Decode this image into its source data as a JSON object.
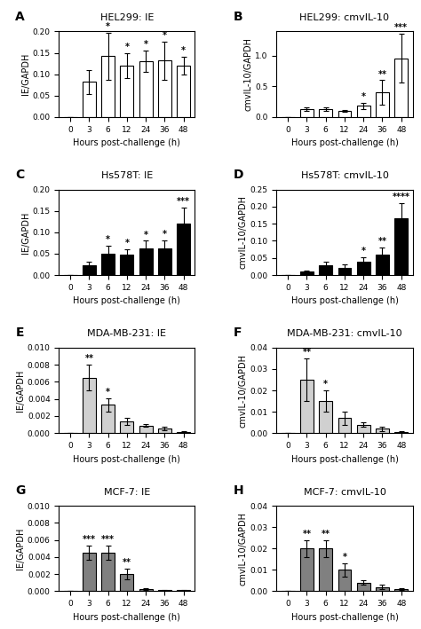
{
  "chart_data": [
    {
      "type": "bar",
      "panel_label": "A",
      "title": "HEL299: IE",
      "xlabel": "Hours post-challenge (h)",
      "ylabel": "IE/GAPDH",
      "categories": [
        "0",
        "3",
        "6",
        "12",
        "24",
        "36",
        "48"
      ],
      "values": [
        0.0,
        0.082,
        0.142,
        0.12,
        0.13,
        0.132,
        0.12
      ],
      "errors": [
        0.0,
        0.028,
        0.055,
        0.03,
        0.025,
        0.045,
        0.02
      ],
      "color": "white",
      "ylim": [
        0,
        0.2
      ],
      "yticks": [
        {
          "value": 0.0,
          "label": "0.00"
        },
        0.05,
        {
          "value": 0.1,
          "label": "0.10"
        },
        0.15,
        {
          "value": 0.2,
          "label": "0.20"
        }
      ],
      "annotations": [
        {
          "category": "6",
          "text": "*"
        },
        {
          "category": "12",
          "text": "*"
        },
        {
          "category": "24",
          "text": "*"
        },
        {
          "category": "36",
          "text": "*"
        },
        {
          "category": "48",
          "text": "*"
        }
      ]
    },
    {
      "type": "bar",
      "panel_label": "B",
      "title": "HEL299: cmvIL-10",
      "xlabel": "Hours post-challenge (h)",
      "ylabel": "cmvIL-10/GAPDH",
      "categories": [
        "0",
        "3",
        "6",
        "12",
        "24",
        "36",
        "48"
      ],
      "values": [
        0.0,
        0.13,
        0.13,
        0.1,
        0.18,
        0.4,
        0.96
      ],
      "errors": [
        0.0,
        0.03,
        0.03,
        0.02,
        0.05,
        0.2,
        0.4
      ],
      "color": "white",
      "ylim": [
        0,
        1.4
      ],
      "yticks": [
        0.0,
        0.5,
        1.0
      ],
      "annotations": [
        {
          "category": "24",
          "text": "*"
        },
        {
          "category": "36",
          "text": "**"
        },
        {
          "category": "48",
          "text": "***"
        }
      ]
    },
    {
      "type": "bar",
      "panel_label": "C",
      "title": "Hs578T: IE",
      "xlabel": "Hours post-challenge (h)",
      "ylabel": "IE/GAPDH",
      "categories": [
        "0",
        "3",
        "6",
        "12",
        "24",
        "36",
        "48"
      ],
      "values": [
        0.0,
        0.023,
        0.05,
        0.048,
        0.062,
        0.062,
        0.12
      ],
      "errors": [
        0.0,
        0.008,
        0.018,
        0.012,
        0.018,
        0.02,
        0.038
      ],
      "color": "black",
      "ylim": [
        0,
        0.2
      ],
      "yticks": [
        {
          "value": 0.0,
          "label": "0.00"
        },
        0.05,
        {
          "value": 0.1,
          "label": "0.10"
        },
        0.15,
        {
          "value": 0.2,
          "label": "0.20"
        }
      ],
      "annotations": [
        {
          "category": "6",
          "text": "*"
        },
        {
          "category": "12",
          "text": "*"
        },
        {
          "category": "24",
          "text": "*"
        },
        {
          "category": "36",
          "text": "*"
        },
        {
          "category": "48",
          "text": "***"
        }
      ]
    },
    {
      "type": "bar",
      "panel_label": "D",
      "title": "Hs578T: cmvIL-10",
      "xlabel": "Hours post-challenge (h)",
      "ylabel": "cmvIL-10/GAPDH",
      "categories": [
        "0",
        "3",
        "6",
        "12",
        "24",
        "36",
        "48"
      ],
      "values": [
        0.0,
        0.01,
        0.028,
        0.022,
        0.04,
        0.06,
        0.165
      ],
      "errors": [
        0.0,
        0.003,
        0.01,
        0.008,
        0.012,
        0.02,
        0.045
      ],
      "color": "black",
      "ylim": [
        0,
        0.25
      ],
      "yticks": [
        {
          "value": 0.0,
          "label": "0.00"
        },
        0.05,
        {
          "value": 0.1,
          "label": "0.10"
        },
        0.15,
        {
          "value": 0.2,
          "label": "0.20"
        },
        0.25
      ],
      "annotations": [
        {
          "category": "24",
          "text": "*"
        },
        {
          "category": "36",
          "text": "**"
        },
        {
          "category": "48",
          "text": "****"
        }
      ]
    },
    {
      "type": "bar",
      "panel_label": "E",
      "title": "MDA-MB-231: IE",
      "xlabel": "Hours post-challenge (h)",
      "ylabel": "IE/GAPDH",
      "categories": [
        "0",
        "3",
        "6",
        "12",
        "24",
        "36",
        "48"
      ],
      "values": [
        0.0,
        0.0065,
        0.0033,
        0.0014,
        0.0009,
        0.0005,
        0.0001
      ],
      "errors": [
        0.0,
        0.0015,
        0.0008,
        0.0004,
        0.0002,
        0.0002,
        0.0001
      ],
      "color": "#d0d0d0",
      "ylim": [
        0,
        0.01
      ],
      "yticks": [
        {
          "value": 0.0,
          "label": "0.000"
        },
        0.002,
        0.004,
        0.006,
        0.008,
        {
          "value": 0.01,
          "label": "0.010"
        }
      ],
      "annotations": [
        {
          "category": "3",
          "text": "**"
        },
        {
          "category": "6",
          "text": "*"
        }
      ]
    },
    {
      "type": "bar",
      "panel_label": "F",
      "title": "MDA-MB-231: cmvIL-10",
      "xlabel": "Hours post-challenge (h)",
      "ylabel": "cmvIL-10/GAPDH",
      "categories": [
        "0",
        "3",
        "6",
        "12",
        "24",
        "36",
        "48"
      ],
      "values": [
        0.0,
        0.025,
        0.015,
        0.007,
        0.004,
        0.002,
        0.0005
      ],
      "errors": [
        0.0,
        0.01,
        0.005,
        0.003,
        0.001,
        0.001,
        0.0003
      ],
      "color": "#d0d0d0",
      "ylim": [
        0,
        0.04
      ],
      "yticks": [
        {
          "value": 0.0,
          "label": "0.00"
        },
        0.01,
        0.02,
        0.03,
        0.04
      ],
      "annotations": [
        {
          "category": "3",
          "text": "**"
        },
        {
          "category": "6",
          "text": "*"
        }
      ]
    },
    {
      "type": "bar",
      "panel_label": "G",
      "title": "MCF-7: IE",
      "xlabel": "Hours post-challenge (h)",
      "ylabel": "IE/GAPDH",
      "categories": [
        "0",
        "3",
        "6",
        "12",
        "24",
        "36",
        "48"
      ],
      "values": [
        0.0,
        0.0045,
        0.0045,
        0.002,
        0.0003,
        0.0001,
        0.0001
      ],
      "errors": [
        0.0,
        0.0008,
        0.0008,
        0.0006,
        0.0001,
        0.0001,
        0.0001
      ],
      "color": "#808080",
      "ylim": [
        0,
        0.01
      ],
      "yticks": [
        {
          "value": 0.0,
          "label": "0.000"
        },
        0.002,
        0.004,
        0.006,
        0.008,
        {
          "value": 0.01,
          "label": "0.010"
        }
      ],
      "annotations": [
        {
          "category": "3",
          "text": "***"
        },
        {
          "category": "6",
          "text": "***"
        },
        {
          "category": "12",
          "text": "**"
        }
      ]
    },
    {
      "type": "bar",
      "panel_label": "H",
      "title": "MCF-7: cmvIL-10",
      "xlabel": "Hours post-challenge (h)",
      "ylabel": "cmvIL-10/GAPDH",
      "categories": [
        "0",
        "3",
        "6",
        "12",
        "24",
        "36",
        "48"
      ],
      "values": [
        0.0,
        0.02,
        0.02,
        0.01,
        0.004,
        0.002,
        0.001
      ],
      "errors": [
        0.0,
        0.004,
        0.004,
        0.003,
        0.001,
        0.001,
        0.0005
      ],
      "color": "#808080",
      "ylim": [
        0,
        0.04
      ],
      "yticks": [
        {
          "value": 0.0,
          "label": "0.00"
        },
        0.01,
        0.02,
        0.03,
        0.04
      ],
      "annotations": [
        {
          "category": "3",
          "text": "**"
        },
        {
          "category": "6",
          "text": "**"
        },
        {
          "category": "12",
          "text": "*"
        }
      ]
    }
  ]
}
